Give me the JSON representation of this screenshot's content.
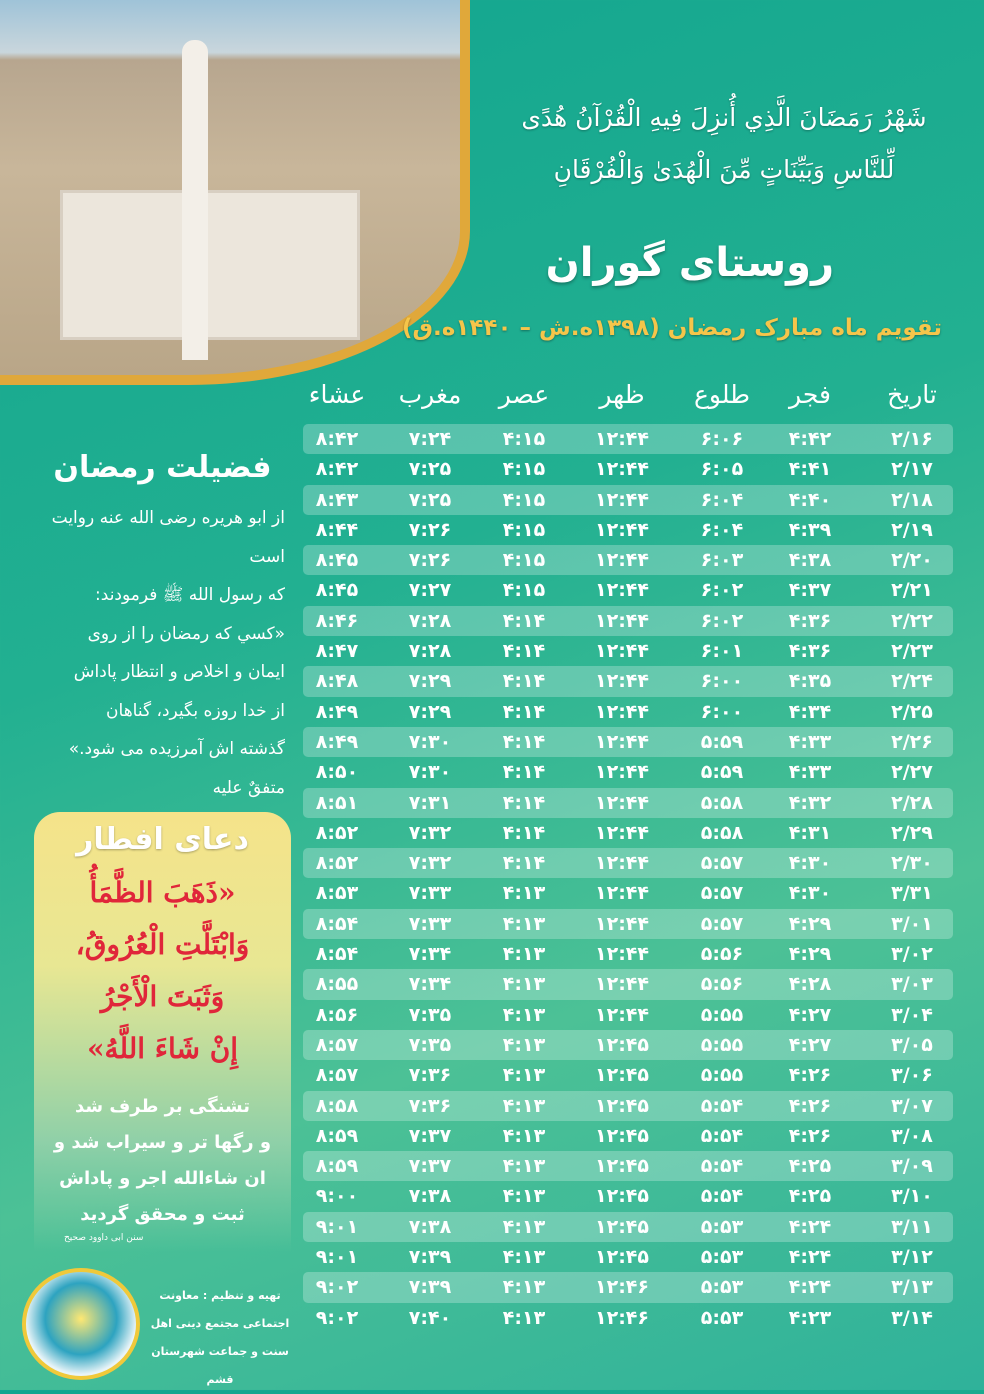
{
  "header": {
    "quran_verse_line1": "شَهْرُ رَمَضَانَ الَّذِي أُنزِلَ فِيهِ الْقُرْآنُ هُدًى",
    "quran_verse_line2": "لِّلنَّاسِ وَبَيِّنَاتٍ مِّنَ الْهُدَىٰ وَالْفُرْقَانِ",
    "title": "روستای گوران",
    "subtitle": "تقویم ماه مبارک رمضان (۱۳۹۸ه.ش – ۱۴۴۰ه.ق)"
  },
  "table": {
    "columns": [
      "تاریخ",
      "فجر",
      "طلوع",
      "ظهر",
      "عصر",
      "مغرب",
      "عشاء"
    ],
    "rows": [
      [
        "۲/۱۶",
        "۴:۴۲",
        "۶:۰۶",
        "۱۲:۴۴",
        "۴:۱۵",
        "۷:۲۴",
        "۸:۴۲"
      ],
      [
        "۲/۱۷",
        "۴:۴۱",
        "۶:۰۵",
        "۱۲:۴۴",
        "۴:۱۵",
        "۷:۲۵",
        "۸:۴۲"
      ],
      [
        "۲/۱۸",
        "۴:۴۰",
        "۶:۰۴",
        "۱۲:۴۴",
        "۴:۱۵",
        "۷:۲۵",
        "۸:۴۳"
      ],
      [
        "۲/۱۹",
        "۴:۳۹",
        "۶:۰۴",
        "۱۲:۴۴",
        "۴:۱۵",
        "۷:۲۶",
        "۸:۴۴"
      ],
      [
        "۲/۲۰",
        "۴:۳۸",
        "۶:۰۳",
        "۱۲:۴۴",
        "۴:۱۵",
        "۷:۲۶",
        "۸:۴۵"
      ],
      [
        "۲/۲۱",
        "۴:۳۷",
        "۶:۰۲",
        "۱۲:۴۴",
        "۴:۱۵",
        "۷:۲۷",
        "۸:۴۵"
      ],
      [
        "۲/۲۲",
        "۴:۳۶",
        "۶:۰۲",
        "۱۲:۴۴",
        "۴:۱۴",
        "۷:۲۸",
        "۸:۴۶"
      ],
      [
        "۲/۲۳",
        "۴:۳۶",
        "۶:۰۱",
        "۱۲:۴۴",
        "۴:۱۴",
        "۷:۲۸",
        "۸:۴۷"
      ],
      [
        "۲/۲۴",
        "۴:۳۵",
        "۶:۰۰",
        "۱۲:۴۴",
        "۴:۱۴",
        "۷:۲۹",
        "۸:۴۸"
      ],
      [
        "۲/۲۵",
        "۴:۳۴",
        "۶:۰۰",
        "۱۲:۴۴",
        "۴:۱۴",
        "۷:۲۹",
        "۸:۴۹"
      ],
      [
        "۲/۲۶",
        "۴:۳۳",
        "۵:۵۹",
        "۱۲:۴۴",
        "۴:۱۴",
        "۷:۳۰",
        "۸:۴۹"
      ],
      [
        "۲/۲۷",
        "۴:۳۳",
        "۵:۵۹",
        "۱۲:۴۴",
        "۴:۱۴",
        "۷:۳۰",
        "۸:۵۰"
      ],
      [
        "۲/۲۸",
        "۴:۳۲",
        "۵:۵۸",
        "۱۲:۴۴",
        "۴:۱۴",
        "۷:۳۱",
        "۸:۵۱"
      ],
      [
        "۲/۲۹",
        "۴:۳۱",
        "۵:۵۸",
        "۱۲:۴۴",
        "۴:۱۴",
        "۷:۳۲",
        "۸:۵۲"
      ],
      [
        "۲/۳۰",
        "۴:۳۰",
        "۵:۵۷",
        "۱۲:۴۴",
        "۴:۱۴",
        "۷:۳۲",
        "۸:۵۲"
      ],
      [
        "۳/۳۱",
        "۴:۳۰",
        "۵:۵۷",
        "۱۲:۴۴",
        "۴:۱۳",
        "۷:۳۳",
        "۸:۵۳"
      ],
      [
        "۳/۰۱",
        "۴:۲۹",
        "۵:۵۷",
        "۱۲:۴۴",
        "۴:۱۳",
        "۷:۳۳",
        "۸:۵۴"
      ],
      [
        "۳/۰۲",
        "۴:۲۹",
        "۵:۵۶",
        "۱۲:۴۴",
        "۴:۱۳",
        "۷:۳۴",
        "۸:۵۴"
      ],
      [
        "۳/۰۳",
        "۴:۲۸",
        "۵:۵۶",
        "۱۲:۴۴",
        "۴:۱۳",
        "۷:۳۴",
        "۸:۵۵"
      ],
      [
        "۳/۰۴",
        "۴:۲۷",
        "۵:۵۵",
        "۱۲:۴۴",
        "۴:۱۳",
        "۷:۳۵",
        "۸:۵۶"
      ],
      [
        "۳/۰۵",
        "۴:۲۷",
        "۵:۵۵",
        "۱۲:۴۵",
        "۴:۱۳",
        "۷:۳۵",
        "۸:۵۷"
      ],
      [
        "۳/۰۶",
        "۴:۲۶",
        "۵:۵۵",
        "۱۲:۴۵",
        "۴:۱۳",
        "۷:۳۶",
        "۸:۵۷"
      ],
      [
        "۳/۰۷",
        "۴:۲۶",
        "۵:۵۴",
        "۱۲:۴۵",
        "۴:۱۳",
        "۷:۳۶",
        "۸:۵۸"
      ],
      [
        "۳/۰۸",
        "۴:۲۶",
        "۵:۵۴",
        "۱۲:۴۵",
        "۴:۱۳",
        "۷:۳۷",
        "۸:۵۹"
      ],
      [
        "۳/۰۹",
        "۴:۲۵",
        "۵:۵۴",
        "۱۲:۴۵",
        "۴:۱۳",
        "۷:۳۷",
        "۸:۵۹"
      ],
      [
        "۳/۱۰",
        "۴:۲۵",
        "۵:۵۴",
        "۱۲:۴۵",
        "۴:۱۳",
        "۷:۳۸",
        "۹:۰۰"
      ],
      [
        "۳/۱۱",
        "۴:۲۴",
        "۵:۵۳",
        "۱۲:۴۵",
        "۴:۱۳",
        "۷:۳۸",
        "۹:۰۱"
      ],
      [
        "۳/۱۲",
        "۴:۲۴",
        "۵:۵۳",
        "۱۲:۴۵",
        "۴:۱۳",
        "۷:۳۹",
        "۹:۰۱"
      ],
      [
        "۳/۱۳",
        "۴:۲۴",
        "۵:۵۳",
        "۱۲:۴۶",
        "۴:۱۳",
        "۷:۳۹",
        "۹:۰۲"
      ],
      [
        "۳/۱۴",
        "۴:۲۳",
        "۵:۵۳",
        "۱۲:۴۶",
        "۴:۱۳",
        "۷:۴۰",
        "۹:۰۲"
      ]
    ]
  },
  "fazilat": {
    "title": "فضیلت رمضان",
    "lines": [
      "از ابو هریره رضی الله عنه روایت است",
      "که رسول الله ﷺ فرمودند:",
      "«کسي که رمضان را از روی",
      "ایمان و اخلاص و انتظار پاداش",
      "از خدا روزه بگیرد، گناهان",
      "گذشته اش آمرزیده می شود.»",
      "متفقٌ علیه"
    ]
  },
  "dua": {
    "title": "دعای افطار",
    "arabic": [
      "«ذَهَبَ الظَّمَأُ",
      "وَابْتَلَّتِ الْعُرُوقُ،",
      "وَثَبَتَ الْأَجْرُ",
      "إِنْ شَاءَ اللَّهُ»"
    ],
    "persian": [
      "تشنگی بر طرف شد",
      "و رگها تر و سیراب شد و",
      "ان شاءالله اجر و پاداش",
      "ثبت و محقق گردید"
    ],
    "source": "سنن ابی داوود صحیح"
  },
  "footer": {
    "credit_lines": [
      "تهیه و تنظیم : معاونت",
      "اجتماعی مجتمع دینی اهل",
      "سنت و جماعت شهرستان قشم"
    ]
  },
  "colors": {
    "background": "#22b091",
    "accent_gold": "#f5c54a",
    "dua_red": "#e0263a",
    "row_band": "rgba(255,255,255,.25)"
  }
}
